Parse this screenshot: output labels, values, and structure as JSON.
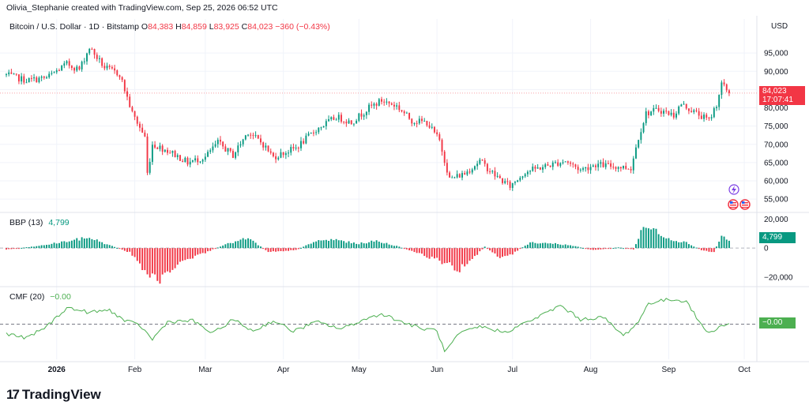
{
  "header": {
    "attribution": "Olivia_Stephanie created with TradingView.com, Sep 25, 2026 06:52 UTC",
    "currency": "USD"
  },
  "symbol": {
    "name": "Bitcoin / U.S. Dollar · 1D · Bitstamp",
    "open_label": "O",
    "open": "84,383",
    "high_label": "H",
    "high": "84,859",
    "low_label": "L",
    "low": "83,925",
    "close_label": "C",
    "close": "84,023",
    "change": "−360 (−0.43%)"
  },
  "price_badge": {
    "price": "84,023",
    "countdown": "17:07:41",
    "color": "#f23645"
  },
  "bbp": {
    "label": "BBP (13)",
    "value": "4,799",
    "badge": "4,799",
    "color_up": "#089981",
    "color_down": "#f23645"
  },
  "cmf": {
    "label": "CMF (20)",
    "value": "−0.00",
    "badge": "−0.00",
    "color": "#4caf50"
  },
  "brand": {
    "name": "TradingView",
    "mark": "17"
  },
  "colors": {
    "up": "#089981",
    "down": "#f23645",
    "grid": "#f0f3fa",
    "dotted": "#f7a1a8"
  },
  "chart_data": [
    {
      "type": "candlestick",
      "title": "Bitcoin / U.S. Dollar · 1D · Bitstamp",
      "ylabel": "USD",
      "ylim": [
        52000,
        100000
      ],
      "yticks": [
        55000,
        60000,
        65000,
        70000,
        75000,
        80000,
        85000,
        90000,
        95000
      ],
      "ytick_labels": [
        "55,000",
        "60,000",
        "65,000",
        "70,000",
        "75,000",
        "80,000",
        "85,000",
        "90,000",
        "95,000"
      ],
      "x_start": "2025-12-12",
      "x_end": "2026-10-06",
      "xticks": [
        "2026-01-01",
        "2026-02-01",
        "2026-03-01",
        "2026-04-01",
        "2026-05-01",
        "2026-06-01",
        "2026-07-01",
        "2026-08-01",
        "2026-09-01",
        "2026-10-01"
      ],
      "xtick_labels": [
        "2026",
        "Feb",
        "Mar",
        "Apr",
        "May",
        "Jun",
        "Jul",
        "Aug",
        "Sep",
        "Oct"
      ],
      "close_anchors": [
        [
          "2025-12-12",
          89000
        ],
        [
          "2025-12-20",
          87500
        ],
        [
          "2025-12-28",
          88200
        ],
        [
          "2026-01-05",
          92000
        ],
        [
          "2026-01-10",
          90500
        ],
        [
          "2026-01-14",
          96500
        ],
        [
          "2026-01-20",
          91000
        ],
        [
          "2026-01-26",
          89200
        ],
        [
          "2026-01-31",
          78500
        ],
        [
          "2026-02-05",
          72000
        ],
        [
          "2026-02-06",
          62000
        ],
        [
          "2026-02-08",
          70000
        ],
        [
          "2026-02-15",
          68000
        ],
        [
          "2026-02-22",
          65000
        ],
        [
          "2026-03-01",
          66500
        ],
        [
          "2026-03-06",
          70500
        ],
        [
          "2026-03-12",
          67000
        ],
        [
          "2026-03-18",
          73500
        ],
        [
          "2026-03-24",
          70000
        ],
        [
          "2026-03-28",
          66500
        ],
        [
          "2026-04-06",
          69000
        ],
        [
          "2026-04-14",
          74000
        ],
        [
          "2026-04-22",
          77500
        ],
        [
          "2026-04-28",
          76000
        ],
        [
          "2026-05-05",
          80000
        ],
        [
          "2026-05-10",
          82000
        ],
        [
          "2026-05-16",
          80500
        ],
        [
          "2026-05-22",
          76500
        ],
        [
          "2026-05-28",
          76000
        ],
        [
          "2026-06-02",
          71000
        ],
        [
          "2026-06-06",
          60500
        ],
        [
          "2026-06-12",
          62000
        ],
        [
          "2026-06-18",
          65500
        ],
        [
          "2026-06-24",
          61500
        ],
        [
          "2026-06-30",
          58500
        ],
        [
          "2026-07-06",
          62500
        ],
        [
          "2026-07-14",
          64000
        ],
        [
          "2026-07-22",
          65500
        ],
        [
          "2026-07-28",
          63000
        ],
        [
          "2026-08-03",
          64500
        ],
        [
          "2026-08-10",
          64000
        ],
        [
          "2026-08-17",
          63500
        ],
        [
          "2026-08-20",
          72000
        ],
        [
          "2026-08-23",
          78500
        ],
        [
          "2026-08-28",
          79500
        ],
        [
          "2026-09-03",
          78000
        ],
        [
          "2026-09-06",
          81000
        ],
        [
          "2026-09-12",
          78500
        ],
        [
          "2026-09-17",
          76500
        ],
        [
          "2026-09-20",
          81000
        ],
        [
          "2026-09-22",
          86500
        ],
        [
          "2026-09-25",
          84023
        ]
      ]
    },
    {
      "type": "bar",
      "title": "BBP (13)",
      "ylim": [
        -25000,
        23000
      ],
      "yticks": [
        -20000,
        0,
        20000
      ],
      "ytick_labels": [
        "−20,000",
        "0",
        "20,000"
      ],
      "anchors": [
        [
          "2025-12-12",
          -1000
        ],
        [
          "2025-12-25",
          1500
        ],
        [
          "2026-01-14",
          7500
        ],
        [
          "2026-01-22",
          2000
        ],
        [
          "2026-01-30",
          -3000
        ],
        [
          "2026-02-06",
          -18000
        ],
        [
          "2026-02-10",
          -23000
        ],
        [
          "2026-02-18",
          -12000
        ],
        [
          "2026-02-28",
          -4000
        ],
        [
          "2026-03-08",
          2000
        ],
        [
          "2026-03-18",
          7000
        ],
        [
          "2026-03-26",
          -2500
        ],
        [
          "2026-04-06",
          -1500
        ],
        [
          "2026-04-14",
          5000
        ],
        [
          "2026-04-22",
          6000
        ],
        [
          "2026-04-30",
          3000
        ],
        [
          "2026-05-08",
          5000
        ],
        [
          "2026-05-16",
          1500
        ],
        [
          "2026-05-25",
          -4000
        ],
        [
          "2026-06-02",
          -9000
        ],
        [
          "2026-06-10",
          -15000
        ],
        [
          "2026-06-14",
          -10000
        ],
        [
          "2026-06-20",
          1000
        ],
        [
          "2026-06-26",
          -6500
        ],
        [
          "2026-06-30",
          -5000
        ],
        [
          "2026-07-08",
          4000
        ],
        [
          "2026-07-16",
          3500
        ],
        [
          "2026-07-24",
          2000
        ],
        [
          "2026-08-02",
          -1500
        ],
        [
          "2026-08-12",
          500
        ],
        [
          "2026-08-18",
          -1000
        ],
        [
          "2026-08-22",
          15000
        ],
        [
          "2026-08-26",
          13000
        ],
        [
          "2026-09-02",
          6000
        ],
        [
          "2026-09-08",
          4000
        ],
        [
          "2026-09-14",
          -1500
        ],
        [
          "2026-09-19",
          -3000
        ],
        [
          "2026-09-22",
          9000
        ],
        [
          "2026-09-25",
          4799
        ]
      ]
    },
    {
      "type": "line",
      "title": "CMF (20)",
      "ylim": [
        -0.3,
        0.3
      ],
      "baseline": 0,
      "anchors": [
        [
          "2025-12-12",
          -0.08
        ],
        [
          "2025-12-20",
          -0.12
        ],
        [
          "2025-12-28",
          -0.02
        ],
        [
          "2026-01-05",
          0.14
        ],
        [
          "2026-01-14",
          0.1
        ],
        [
          "2026-01-22",
          0.12
        ],
        [
          "2026-01-28",
          0.03
        ],
        [
          "2026-02-03",
          -0.01
        ],
        [
          "2026-02-08",
          -0.13
        ],
        [
          "2026-02-14",
          0.02
        ],
        [
          "2026-02-24",
          0.03
        ],
        [
          "2026-03-04",
          -0.08
        ],
        [
          "2026-03-12",
          0.04
        ],
        [
          "2026-03-20",
          -0.06
        ],
        [
          "2026-03-28",
          0.03
        ],
        [
          "2026-04-05",
          -0.06
        ],
        [
          "2026-04-14",
          0.02
        ],
        [
          "2026-04-24",
          -0.04
        ],
        [
          "2026-05-02",
          0.03
        ],
        [
          "2026-05-10",
          0.09
        ],
        [
          "2026-05-18",
          0.02
        ],
        [
          "2026-05-26",
          -0.04
        ],
        [
          "2026-06-01",
          -0.05
        ],
        [
          "2026-06-04",
          -0.24
        ],
        [
          "2026-06-10",
          -0.08
        ],
        [
          "2026-06-18",
          -0.02
        ],
        [
          "2026-06-28",
          -0.07
        ],
        [
          "2026-07-04",
          -0.01
        ],
        [
          "2026-07-12",
          0.07
        ],
        [
          "2026-07-20",
          0.16
        ],
        [
          "2026-07-28",
          0.04
        ],
        [
          "2026-08-06",
          0.06
        ],
        [
          "2026-08-14",
          -0.1
        ],
        [
          "2026-08-20",
          0.02
        ],
        [
          "2026-08-24",
          0.18
        ],
        [
          "2026-09-01",
          0.21
        ],
        [
          "2026-09-08",
          0.2
        ],
        [
          "2026-09-13",
          0.02
        ],
        [
          "2026-09-17",
          -0.08
        ],
        [
          "2026-09-21",
          -0.02
        ],
        [
          "2026-09-25",
          -0.0
        ]
      ]
    }
  ]
}
